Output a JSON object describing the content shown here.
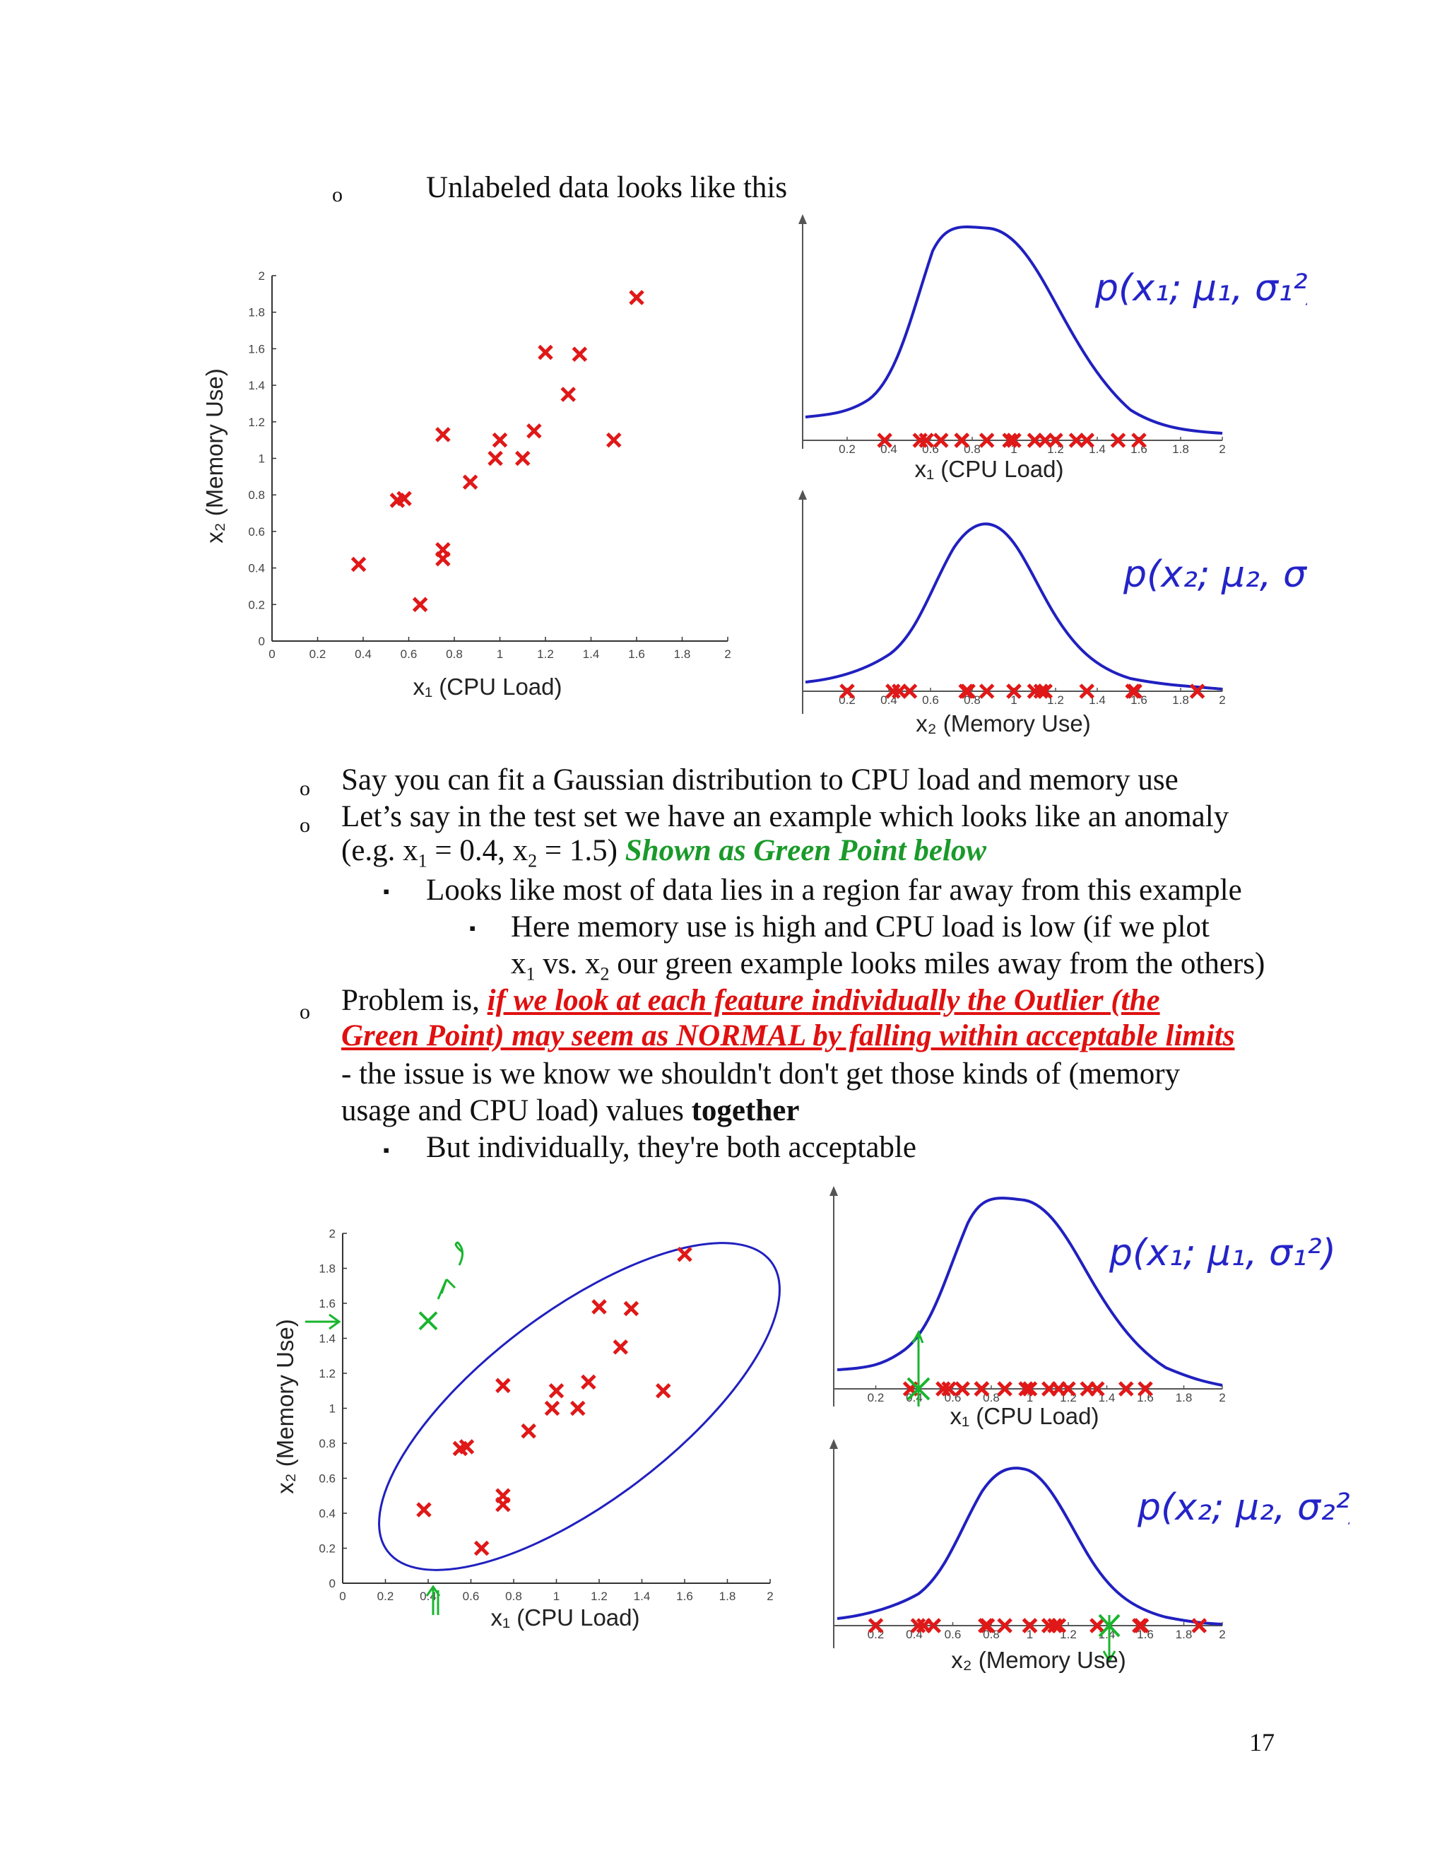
{
  "intro_line": "Unlabeled data looks like this",
  "bullets": {
    "b1": "Say you can fit a Gaussian distribution  to CPU load and memory use",
    "b2_line1": "Let’s say in the test set we have an example which looks like  an anomaly",
    "b2_line2_prefix": "(e.g. x",
    "b2_sub1": "1",
    "b2_mid": " = 0.4, x",
    "b2_sub2": "2",
    "b2_suffix": " = 1.5) ",
    "b2_green": "Shown as Green Point below",
    "b2_sub_a": "Looks like most of data lies in a region  far away from this example",
    "b2_sub_b_line1": "Here  memory  use  is  high  and  CPU  load  is  low  (if  we  plot",
    "b2_sub_b_line2_a": "x",
    "b2_sub_b_line2_s1": "1",
    "b2_sub_b_line2_b": " vs. x",
    "b2_sub_b_line2_s2": "2",
    "b2_sub_b_line2_c": " our green example looks miles away from the others)",
    "b3_prefix": "Problem is, ",
    "b3_red1": "if we look at each feature individually the Outlier (the",
    "b3_red2": "Green Point) may seem as NORMAL by falling within acceptable limits",
    "b3_line3": "- the issue is we know we shouldn't don't get those kinds of (memory",
    "b3_line4_a": "usage and CPU load) values ",
    "b3_line4_bold": "together",
    "b3_sub": "But individually,  they're both acceptable"
  },
  "bullet_glyph": "o",
  "square_glyph": "▪",
  "page_number": "17",
  "annotations": {
    "px1": "p(x₁; μ₁, σ₁²)",
    "px2": "p(x₂; μ₂, σ₂²)"
  },
  "axis_labels": {
    "scatter_x": "x₁ (CPU Load)",
    "scatter_y": "x₂ (Memory Use)",
    "top_x": "x₁  (CPU Load)",
    "bottom_x": "x₂ (Memory Use)"
  },
  "colors": {
    "marker": "#e01818",
    "curve": "#2020c0",
    "green": "#19b52e",
    "text_green": "#1a9a2a",
    "text_red": "#e01010"
  },
  "chart_data": [
    {
      "type": "scatter",
      "id": "scatter-top",
      "xlabel": "x₁ (CPU Load)",
      "ylabel": "x₂ (Memory Use)",
      "xlim": [
        0,
        2
      ],
      "ylim": [
        0,
        2
      ],
      "xticks": [
        "0",
        "0.2",
        "0.4",
        "0.6",
        "0.8",
        "1",
        "1.2",
        "1.4",
        "1.6",
        "1.8",
        "2"
      ],
      "yticks": [
        "0",
        "0.2",
        "0.4",
        "0.6",
        "0.8",
        "1",
        "1.2",
        "1.4",
        "1.6",
        "1.8",
        "2"
      ],
      "points": [
        [
          0.38,
          0.42
        ],
        [
          0.55,
          0.77
        ],
        [
          0.58,
          0.78
        ],
        [
          0.65,
          0.2
        ],
        [
          0.75,
          0.45
        ],
        [
          0.75,
          0.5
        ],
        [
          0.75,
          1.13
        ],
        [
          0.87,
          0.87
        ],
        [
          0.98,
          1.0
        ],
        [
          1.0,
          1.1
        ],
        [
          1.1,
          1.0
        ],
        [
          1.15,
          1.15
        ],
        [
          1.2,
          1.58
        ],
        [
          1.3,
          1.35
        ],
        [
          1.35,
          1.57
        ],
        [
          1.5,
          1.1
        ],
        [
          1.6,
          1.88
        ]
      ]
    },
    {
      "type": "scatter",
      "id": "scatter-bottom",
      "xlabel": "x₁ (CPU Load)",
      "ylabel": "x₂ (Memory Use)",
      "xlim": [
        0,
        2
      ],
      "ylim": [
        0,
        2
      ],
      "xticks": [
        "0",
        "0.2",
        "0.4",
        "0.6",
        "0.8",
        "1",
        "1.2",
        "1.4",
        "1.6",
        "1.8",
        "2"
      ],
      "yticks": [
        "0",
        "0.2",
        "0.4",
        "0.6",
        "0.8",
        "1",
        "1.2",
        "1.4",
        "1.6",
        "1.8",
        "2"
      ],
      "points": [
        [
          0.38,
          0.42
        ],
        [
          0.55,
          0.77
        ],
        [
          0.58,
          0.78
        ],
        [
          0.65,
          0.2
        ],
        [
          0.75,
          0.45
        ],
        [
          0.75,
          0.5
        ],
        [
          0.75,
          1.13
        ],
        [
          0.87,
          0.87
        ],
        [
          0.98,
          1.0
        ],
        [
          1.0,
          1.1
        ],
        [
          1.1,
          1.0
        ],
        [
          1.15,
          1.15
        ],
        [
          1.2,
          1.58
        ],
        [
          1.3,
          1.35
        ],
        [
          1.35,
          1.57
        ],
        [
          1.5,
          1.1
        ],
        [
          1.6,
          1.88
        ]
      ],
      "anomaly": [
        0.4,
        1.5
      ]
    }
  ]
}
